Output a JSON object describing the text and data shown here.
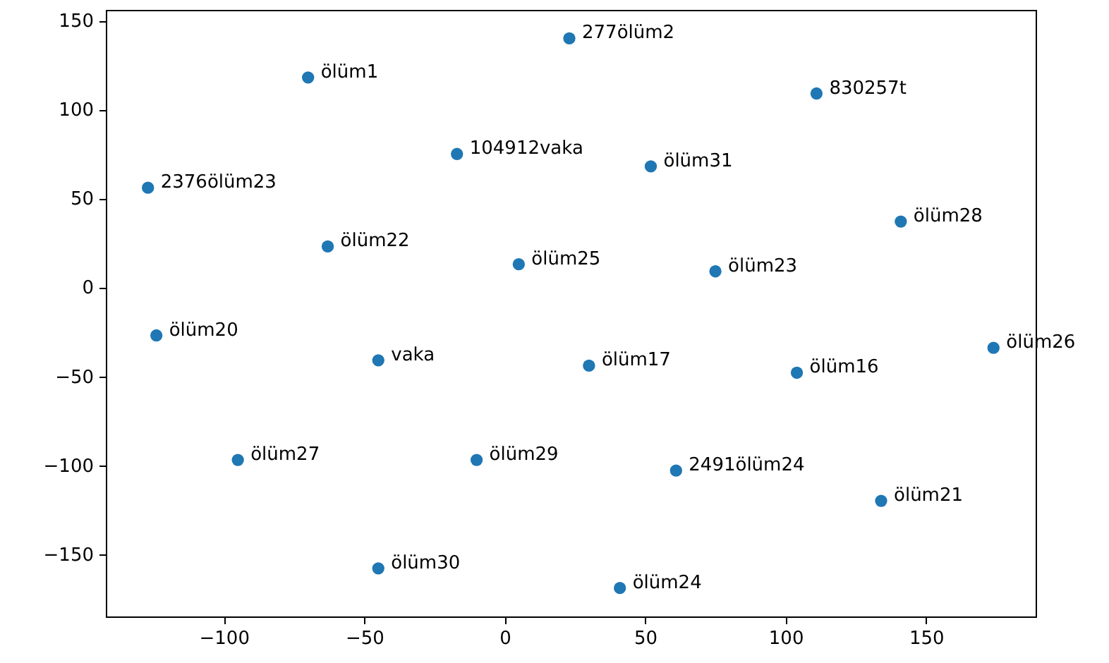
{
  "chart_data": {
    "type": "scatter",
    "marker": "circle",
    "grid": false,
    "x": [
      -70,
      23,
      111,
      -17,
      52,
      -127,
      141,
      -63,
      5,
      75,
      -124,
      -45,
      30,
      104,
      174,
      -95,
      -10,
      61,
      134,
      -45,
      41
    ],
    "series": [
      {
        "color": "#1f77b4",
        "values": [
          118,
          140,
          109,
          75,
          68,
          56,
          37,
          23,
          13,
          9,
          -27,
          -41,
          -44,
          -48,
          -34,
          -97,
          -97,
          -103,
          -120,
          -158,
          -169
        ]
      }
    ],
    "xlim": [
      -142,
      189
    ],
    "ylim": [
      -185,
      156
    ],
    "xticks": [
      -100,
      -50,
      0,
      50,
      100,
      150
    ],
    "yticks": [
      -150,
      -100,
      -50,
      0,
      50,
      100,
      150
    ],
    "annotations": [
      {
        "text": "ölüm1",
        "x": -70,
        "y": 118
      },
      {
        "text": "277ölüm2",
        "x": 23,
        "y": 140
      },
      {
        "text": "830257t",
        "x": 111,
        "y": 109
      },
      {
        "text": "104912vaka",
        "x": -17,
        "y": 75
      },
      {
        "text": "ölüm31",
        "x": 52,
        "y": 68
      },
      {
        "text": "2376ölüm23",
        "x": -127,
        "y": 56
      },
      {
        "text": "ölüm28",
        "x": 141,
        "y": 37
      },
      {
        "text": "ölüm22",
        "x": -63,
        "y": 23
      },
      {
        "text": "ölüm25",
        "x": 5,
        "y": 13
      },
      {
        "text": "ölüm23",
        "x": 75,
        "y": 9
      },
      {
        "text": "ölüm20",
        "x": -124,
        "y": -27
      },
      {
        "text": "vaka",
        "x": -45,
        "y": -41
      },
      {
        "text": "ölüm17",
        "x": 30,
        "y": -44
      },
      {
        "text": "ölüm16",
        "x": 104,
        "y": -48
      },
      {
        "text": "ölüm26",
        "x": 174,
        "y": -34
      },
      {
        "text": "ölüm27",
        "x": -95,
        "y": -97
      },
      {
        "text": "ölüm29",
        "x": -10,
        "y": -97
      },
      {
        "text": "2491ölüm24",
        "x": 61,
        "y": -103
      },
      {
        "text": "ölüm21",
        "x": 134,
        "y": -120
      },
      {
        "text": "ölüm30",
        "x": -45,
        "y": -158
      },
      {
        "text": "ölüm24",
        "x": 41,
        "y": -169
      }
    ]
  }
}
